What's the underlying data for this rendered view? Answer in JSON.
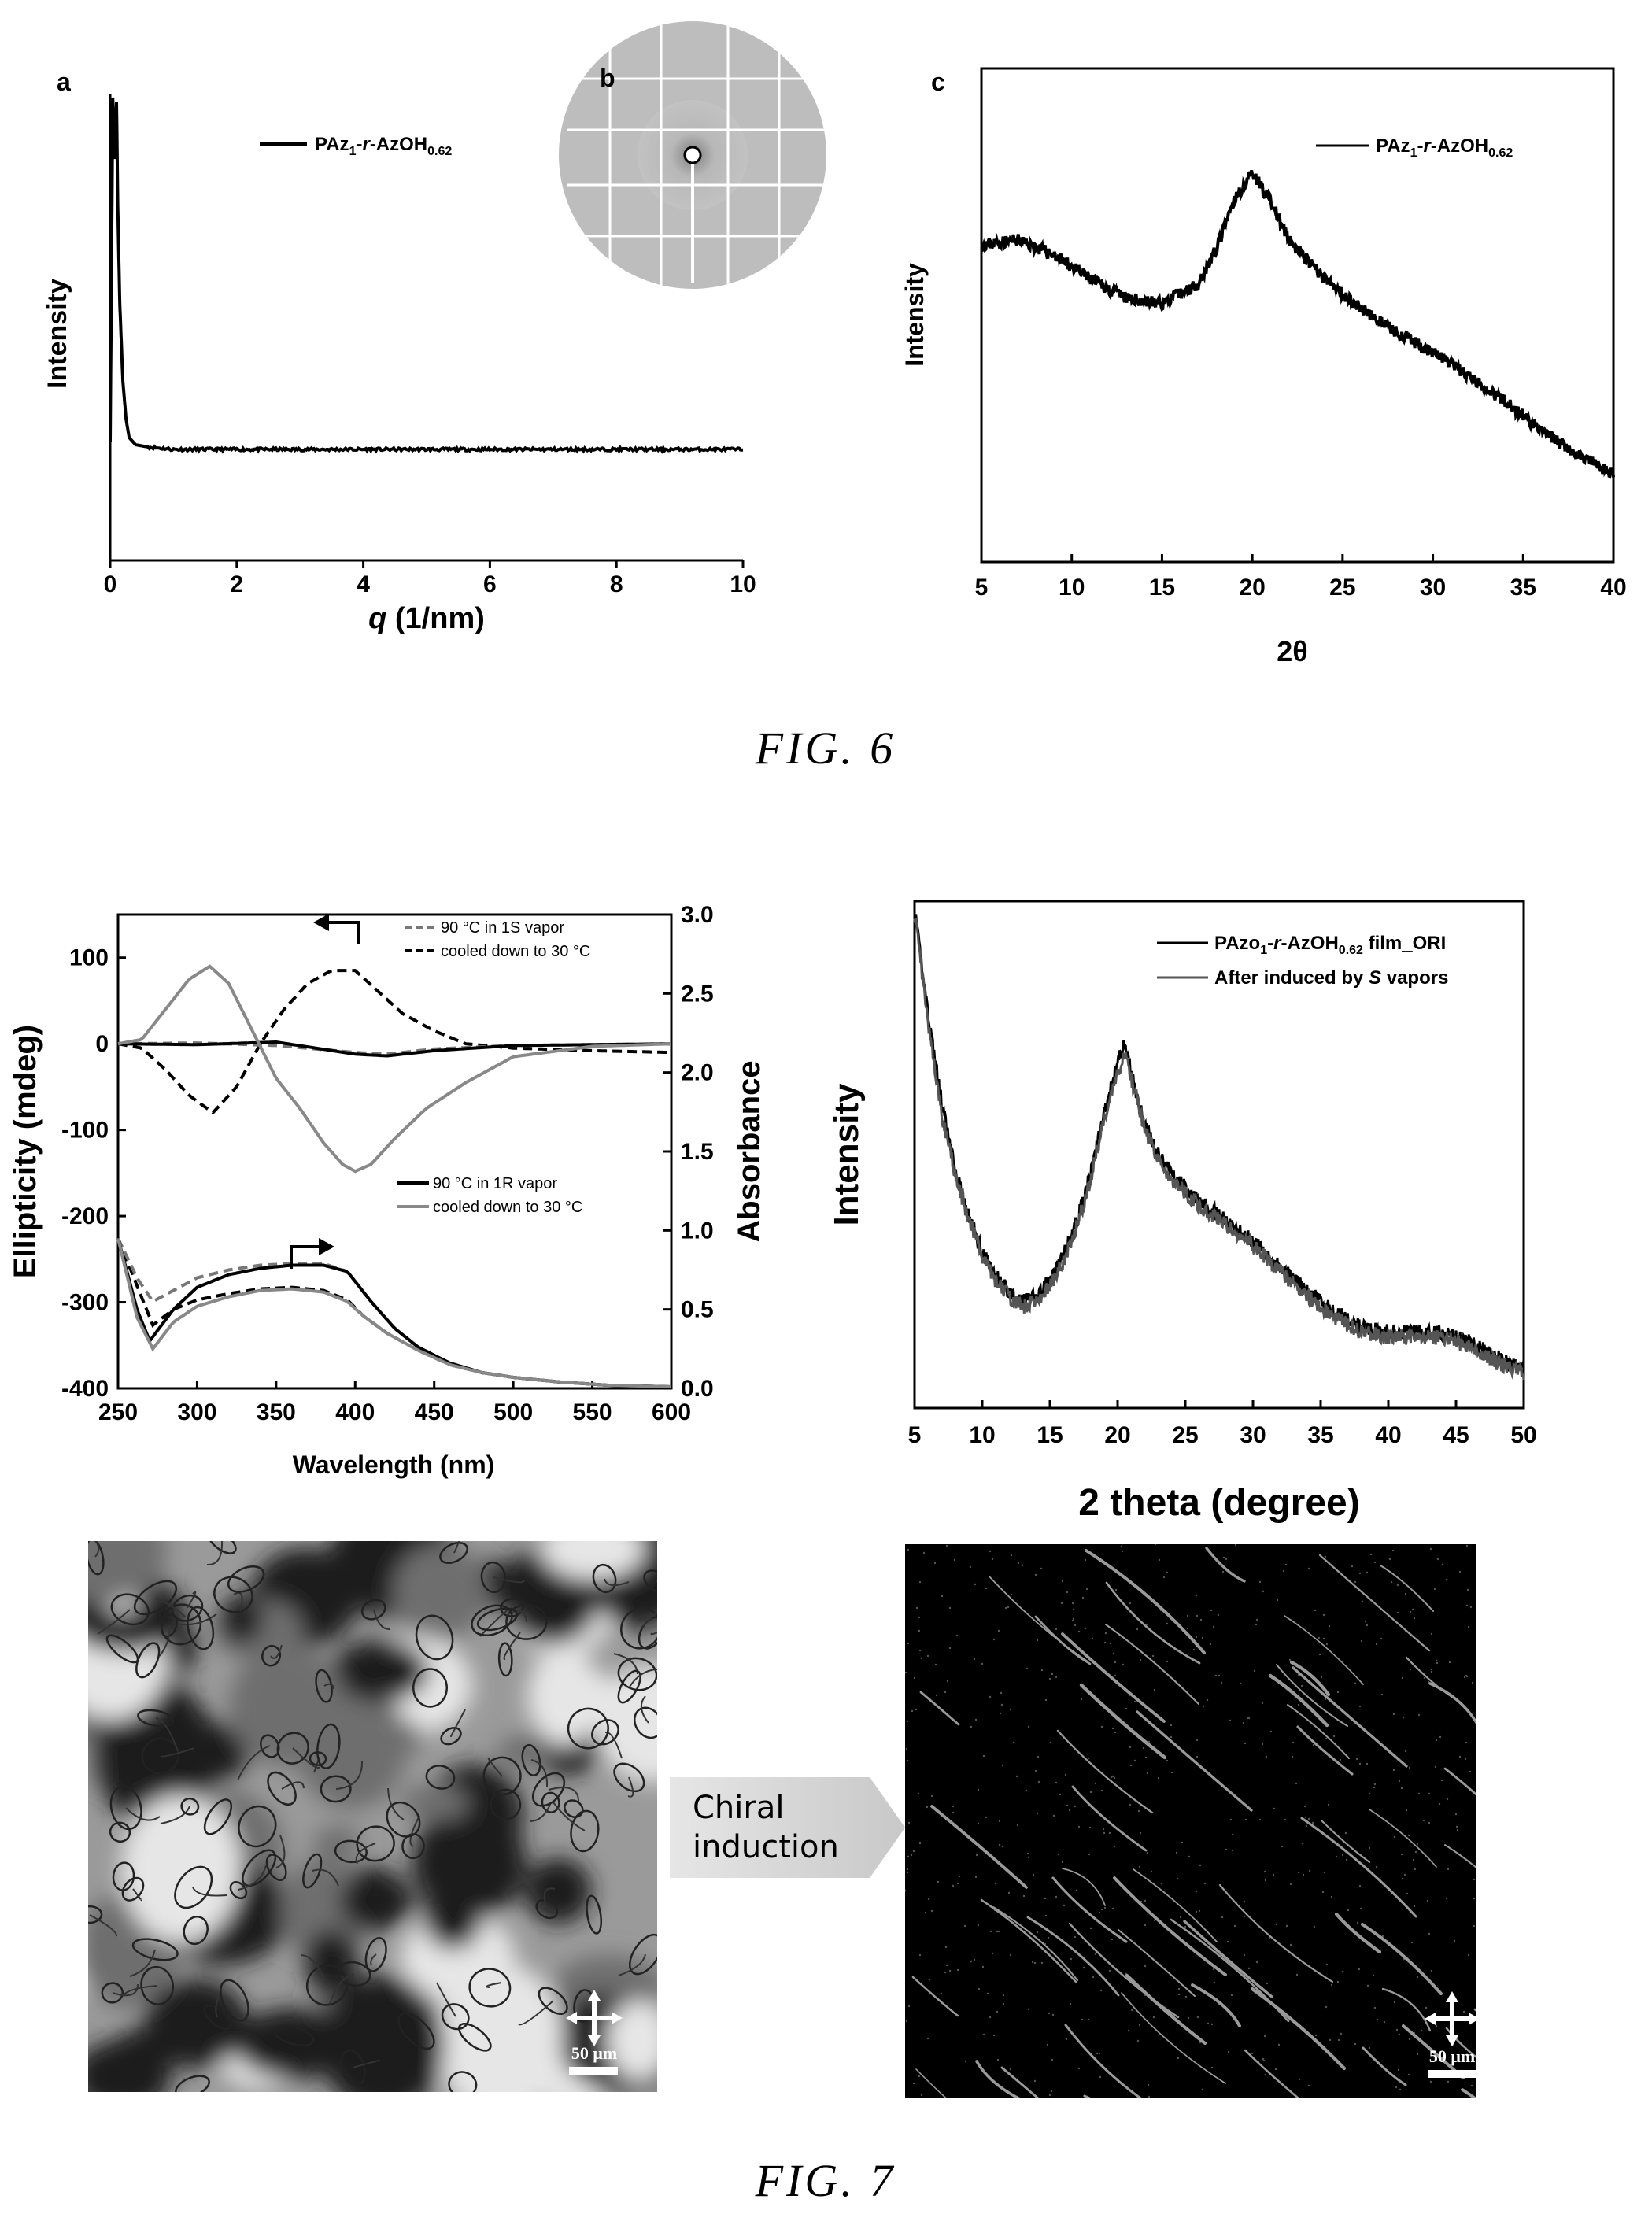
{
  "figure6": {
    "caption": "FIG. 6",
    "panel_a": {
      "letter": "a",
      "legend": {
        "name": "PAz",
        "sub1": "1",
        "mid": "-",
        "ital": "r",
        "mid2": "-AzOH",
        "sub2": "0.62"
      }
    },
    "panel_b": {
      "letter": "b"
    },
    "panel_c": {
      "letter": "c",
      "legend": {
        "name": "PAz",
        "sub1": "1",
        "mid": "-",
        "ital": "r",
        "mid2": "-AzOH",
        "sub2": "0.62"
      }
    }
  },
  "figure7": {
    "caption": "FIG. 7",
    "cd_legend_top": [
      "90 °C in 1S vapor",
      "cooled down to 30 °C"
    ],
    "cd_legend_bottom": [
      "90 °C in 1R vapor",
      "cooled down to 30 °C"
    ],
    "xrd_legend": [
      {
        "name": "PAzo",
        "sub1": "1",
        "mid": "-",
        "ital": "r",
        "mid2": "-AzOH",
        "sub2": "0.62",
        "tail": " film_ORI"
      },
      {
        "text_pre": "After induced by ",
        "ital": "S",
        "text_post": " vapors"
      }
    ],
    "arrow_text": [
      "Chiral",
      "induction"
    ],
    "scalebar_left": "50 μm",
    "scalebar_right": "50 μm"
  },
  "chart_data": [
    {
      "type": "line",
      "panel": "a",
      "xlabel_ital": "q",
      "xlabel_rest": " (1/nm)",
      "ylabel": "Intensity",
      "xlim": [
        0,
        10
      ],
      "xticks": [
        "0",
        "2",
        "4",
        "6",
        "8",
        "10"
      ],
      "series": [
        {
          "name": "PAz1-r-AzOH0.62",
          "x": [
            0.0,
            0.04,
            0.08,
            0.1,
            0.12,
            0.15,
            0.2,
            0.25,
            0.3,
            0.4,
            0.6,
            1,
            2,
            4,
            6,
            8,
            10
          ],
          "y": [
            0.25,
            0.98,
            0.85,
            0.97,
            0.75,
            0.55,
            0.38,
            0.3,
            0.26,
            0.245,
            0.24,
            0.235,
            0.235,
            0.235,
            0.235,
            0.235,
            0.235
          ]
        }
      ]
    },
    {
      "type": "line",
      "panel": "c",
      "xlabel": "2θ",
      "ylabel": "Intensity",
      "xlim": [
        5,
        40
      ],
      "xticks": [
        "5",
        "10",
        "15",
        "20",
        "25",
        "30",
        "35",
        "40"
      ],
      "series": [
        {
          "name": "PAz1-r-AzOH0.62",
          "x": [
            5,
            7,
            9,
            11,
            13,
            15,
            17,
            18,
            19,
            20,
            21,
            22,
            24,
            26,
            28,
            30,
            32,
            34,
            36,
            38,
            40
          ],
          "y": [
            0.65,
            0.66,
            0.63,
            0.58,
            0.54,
            0.53,
            0.57,
            0.64,
            0.74,
            0.8,
            0.74,
            0.66,
            0.58,
            0.52,
            0.47,
            0.43,
            0.38,
            0.33,
            0.27,
            0.22,
            0.18
          ]
        }
      ]
    },
    {
      "type": "line",
      "panel": "cd",
      "xlabel": "Wavelength (nm)",
      "ylabel": "Ellipticity (mdeg)",
      "y2label": "Absorbance",
      "xlim": [
        250,
        600
      ],
      "ylim": [
        -400,
        150
      ],
      "y2lim": [
        0,
        3
      ],
      "xticks": [
        "250",
        "300",
        "350",
        "400",
        "450",
        "500",
        "550",
        "600"
      ],
      "yticks": [
        "-400",
        "-300",
        "-200",
        "-100",
        "0",
        "100"
      ],
      "y2ticks": [
        "0.0",
        "0.5",
        "1.0",
        "1.5",
        "2.0",
        "2.5",
        "3.0"
      ],
      "series": [
        {
          "name": "cooled down to 30 °C (S)",
          "axis": "left",
          "style": "dashed-black",
          "x": [
            250,
            265,
            280,
            295,
            310,
            325,
            340,
            355,
            370,
            385,
            400,
            415,
            430,
            450,
            470,
            500,
            550,
            600
          ],
          "y": [
            0,
            -5,
            -30,
            -60,
            -80,
            -50,
            0,
            40,
            70,
            85,
            85,
            60,
            35,
            15,
            0,
            -5,
            -8,
            -10
          ]
        },
        {
          "name": "90 °C in 1S vapor",
          "axis": "left",
          "style": "dashed-gray",
          "x": [
            250,
            300,
            350,
            400,
            420,
            450,
            500,
            600
          ],
          "y": [
            0,
            1,
            -2,
            -10,
            -12,
            -6,
            -2,
            0
          ]
        },
        {
          "name": "90 °C in 1R vapor",
          "axis": "left",
          "style": "solid-black",
          "x": [
            250,
            300,
            350,
            400,
            420,
            450,
            500,
            600
          ],
          "y": [
            0,
            -1,
            2,
            -12,
            -14,
            -8,
            -2,
            0
          ]
        },
        {
          "name": "cooled down to 30 °C (R)",
          "axis": "left",
          "style": "solid-gray",
          "x": [
            250,
            265,
            280,
            295,
            308,
            320,
            335,
            350,
            365,
            380,
            392,
            400,
            410,
            425,
            445,
            470,
            500,
            550,
            600
          ],
          "y": [
            0,
            5,
            40,
            75,
            90,
            70,
            15,
            -40,
            -75,
            -115,
            -140,
            -148,
            -140,
            -110,
            -75,
            -45,
            -15,
            -3,
            0
          ]
        },
        {
          "name": "abs 1S cooled",
          "axis": "right",
          "style": "dashed-black",
          "x": [
            250,
            262,
            272,
            285,
            300,
            320,
            340,
            360,
            380,
            395,
            405,
            420,
            440,
            460,
            480,
            500,
            530,
            560,
            600
          ],
          "y": [
            0.95,
            0.65,
            0.4,
            0.5,
            0.56,
            0.6,
            0.63,
            0.64,
            0.62,
            0.56,
            0.46,
            0.35,
            0.24,
            0.15,
            0.1,
            0.07,
            0.04,
            0.02,
            0.01
          ]
        },
        {
          "name": "abs 1S 90",
          "axis": "right",
          "style": "dashed-gray",
          "x": [
            250,
            262,
            272,
            285,
            300,
            320,
            340,
            360,
            380,
            395,
            410,
            425,
            440,
            460,
            480,
            500,
            530,
            560,
            600
          ],
          "y": [
            0.95,
            0.7,
            0.55,
            0.62,
            0.7,
            0.75,
            0.78,
            0.79,
            0.79,
            0.74,
            0.55,
            0.38,
            0.26,
            0.16,
            0.1,
            0.07,
            0.04,
            0.02,
            0.01
          ]
        },
        {
          "name": "abs 1R 90",
          "axis": "right",
          "style": "solid-black",
          "x": [
            250,
            262,
            270,
            285,
            300,
            320,
            340,
            360,
            380,
            395,
            410,
            425,
            440,
            460,
            480,
            500,
            530,
            560,
            600
          ],
          "y": [
            0.95,
            0.5,
            0.3,
            0.5,
            0.64,
            0.72,
            0.76,
            0.78,
            0.78,
            0.74,
            0.55,
            0.38,
            0.26,
            0.16,
            0.1,
            0.07,
            0.04,
            0.02,
            0.01
          ]
        },
        {
          "name": "abs 1R cooled",
          "axis": "right",
          "style": "solid-gray",
          "x": [
            250,
            262,
            272,
            285,
            300,
            320,
            340,
            360,
            380,
            395,
            405,
            420,
            440,
            460,
            480,
            500,
            530,
            560,
            600
          ],
          "y": [
            0.95,
            0.45,
            0.25,
            0.42,
            0.52,
            0.58,
            0.62,
            0.63,
            0.61,
            0.55,
            0.46,
            0.35,
            0.24,
            0.15,
            0.1,
            0.07,
            0.04,
            0.02,
            0.01
          ]
        }
      ]
    },
    {
      "type": "line",
      "panel": "xrd7",
      "xlabel": "2 theta (degree)",
      "ylabel": "Intensity",
      "xlim": [
        5,
        50
      ],
      "xticks": [
        "5",
        "10",
        "15",
        "20",
        "25",
        "30",
        "35",
        "40",
        "45",
        "50"
      ],
      "series": [
        {
          "name": "PAzo1-r-AzOH0.62 film_ORI",
          "x": [
            5,
            6,
            7,
            8,
            9,
            10,
            11,
            12,
            13,
            14,
            15,
            16,
            17,
            18,
            19,
            20,
            20.5,
            21,
            22,
            23,
            24,
            26,
            28,
            30,
            32,
            34,
            36,
            38,
            40,
            42,
            44,
            46,
            48,
            50
          ],
          "y": [
            0.98,
            0.78,
            0.6,
            0.47,
            0.38,
            0.31,
            0.26,
            0.23,
            0.21,
            0.22,
            0.25,
            0.3,
            0.37,
            0.46,
            0.58,
            0.68,
            0.72,
            0.66,
            0.56,
            0.5,
            0.46,
            0.41,
            0.37,
            0.33,
            0.28,
            0.23,
            0.19,
            0.16,
            0.15,
            0.15,
            0.15,
            0.13,
            0.1,
            0.08
          ]
        },
        {
          "name": "After induced by S vapors",
          "x": [
            5,
            6,
            7,
            8,
            9,
            10,
            11,
            12,
            13,
            14,
            15,
            16,
            17,
            18,
            19,
            20,
            20.5,
            21,
            22,
            23,
            24,
            26,
            28,
            30,
            32,
            34,
            36,
            38,
            40,
            42,
            44,
            46,
            48,
            50
          ],
          "y": [
            0.98,
            0.76,
            0.58,
            0.46,
            0.37,
            0.3,
            0.25,
            0.22,
            0.2,
            0.21,
            0.24,
            0.29,
            0.36,
            0.45,
            0.57,
            0.66,
            0.7,
            0.65,
            0.55,
            0.49,
            0.45,
            0.4,
            0.36,
            0.32,
            0.27,
            0.22,
            0.18,
            0.15,
            0.14,
            0.14,
            0.14,
            0.12,
            0.09,
            0.07
          ]
        }
      ]
    }
  ]
}
